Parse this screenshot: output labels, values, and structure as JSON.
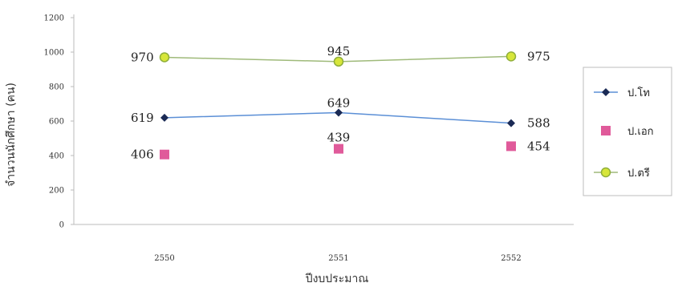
{
  "chart_data": {
    "type": "line",
    "xlabel": "ปีงบประมาณ",
    "ylabel": "จำนวนนักศึกษา (คน)",
    "categories": [
      "2550",
      "2551",
      "2552"
    ],
    "ylim": [
      0,
      1200
    ],
    "yticks": [
      0,
      200,
      400,
      600,
      800,
      1000,
      1200
    ],
    "grid": false,
    "legend_position": "right",
    "series": [
      {
        "name": "ป.โท",
        "values": [
          619,
          649,
          588
        ],
        "color": "#5b8fd6",
        "marker": "diamond",
        "marker_color": "#1a2a55",
        "line": true,
        "labels": [
          "619",
          "649",
          "588"
        ]
      },
      {
        "name": "ป.เอก",
        "values": [
          406,
          439,
          454
        ],
        "color": "#e05a9a",
        "marker": "square",
        "marker_color": "#e05a9a",
        "line": false,
        "labels": [
          "406",
          "439",
          "454"
        ]
      },
      {
        "name": "ป.ตรี",
        "values": [
          970,
          945,
          975
        ],
        "color": "#9fba7a",
        "marker": "circle",
        "marker_color": "#d7e63a",
        "line": true,
        "labels": [
          "970",
          "945",
          "975"
        ]
      }
    ]
  }
}
